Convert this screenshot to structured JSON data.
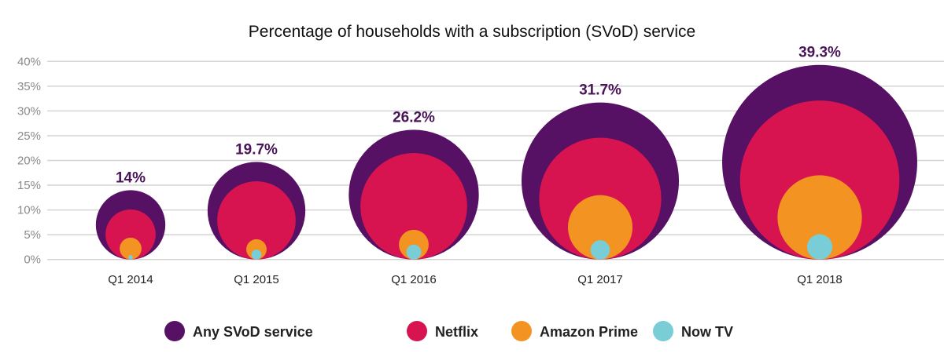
{
  "chart_data": {
    "type": "bubble",
    "title": "Percentage of households with a subscription (SVoD) service",
    "xlabel": "",
    "ylabel": "",
    "ylim": [
      0,
      40
    ],
    "yticks": [
      "0%",
      "5%",
      "10%",
      "15%",
      "20%",
      "25%",
      "30%",
      "35%",
      "40%"
    ],
    "ytick_values": [
      0,
      5,
      10,
      15,
      20,
      25,
      30,
      35,
      40
    ],
    "grid": true,
    "legend_position": "bottom",
    "categories": [
      "Q1 2014",
      "Q1 2015",
      "Q1 2016",
      "Q1 2017",
      "Q1 2018"
    ],
    "data_labels": [
      "14%",
      "19.7%",
      "26.2%",
      "31.7%",
      "39.3%"
    ],
    "series": [
      {
        "name": "Any SVoD service",
        "color": "#561164",
        "values": [
          14,
          19.7,
          26.2,
          31.7,
          39.3
        ]
      },
      {
        "name": "Netflix",
        "color": "#d7144f",
        "values": [
          10.1,
          15.8,
          21.5,
          24.6,
          32.1
        ]
      },
      {
        "name": "Amazon Prime",
        "color": "#f39322",
        "values": [
          4.4,
          4.1,
          6.0,
          13.0,
          17.0
        ]
      },
      {
        "name": "Now TV",
        "color": "#78cdd7",
        "values": [
          0.9,
          2.0,
          3.0,
          3.9,
          5.1
        ]
      }
    ]
  }
}
